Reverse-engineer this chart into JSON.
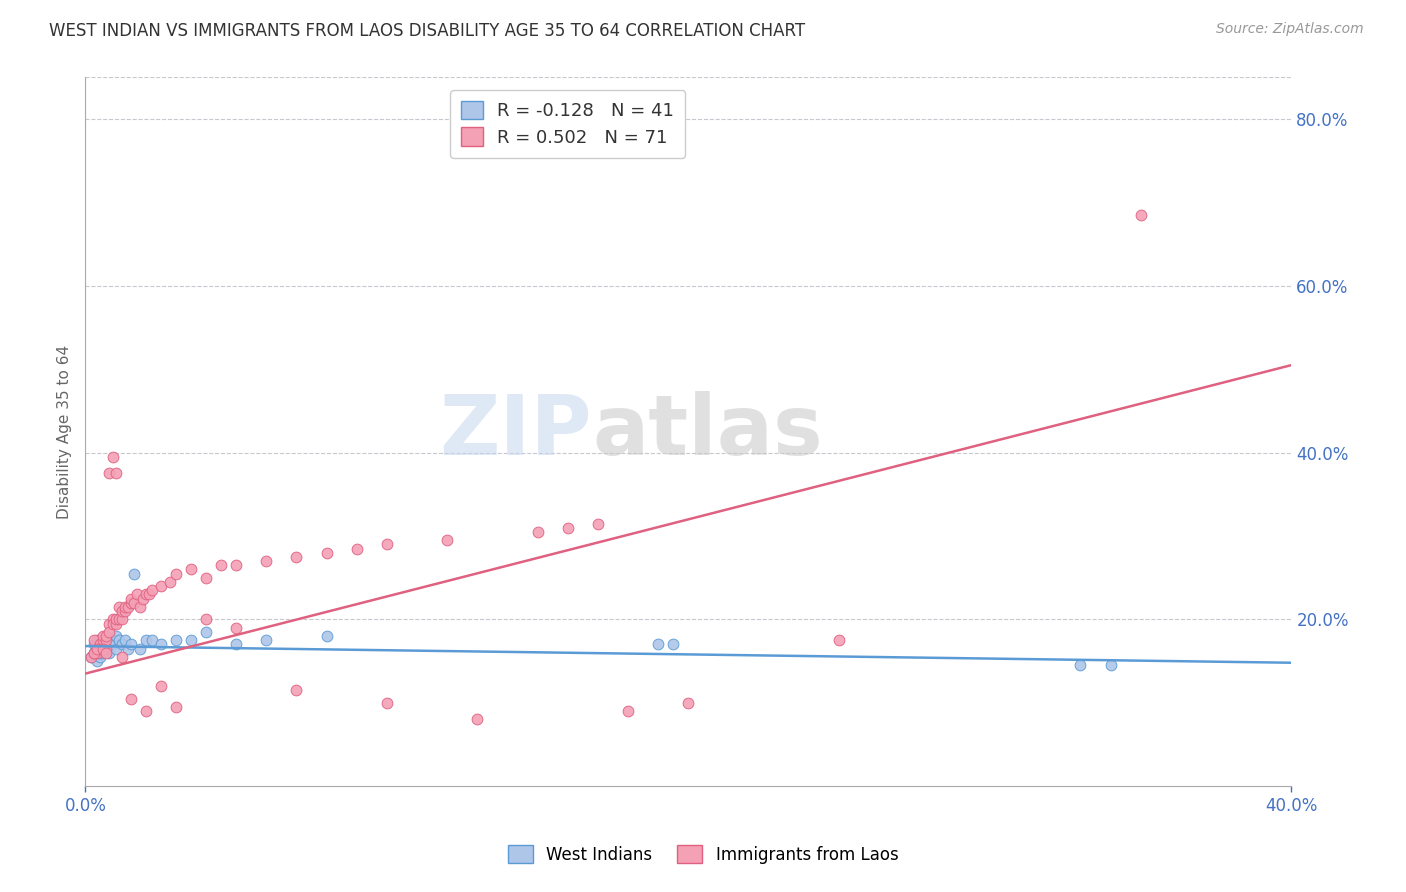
{
  "title": "WEST INDIAN VS IMMIGRANTS FROM LAOS DISABILITY AGE 35 TO 64 CORRELATION CHART",
  "source": "Source: ZipAtlas.com",
  "ylabel": "Disability Age 35 to 64",
  "xlim": [
    0.0,
    0.4
  ],
  "ylim": [
    0.0,
    0.85
  ],
  "xticks": [
    0.0,
    0.4
  ],
  "xtick_labels": [
    "0.0%",
    "40.0%"
  ],
  "ytick_positions": [
    0.2,
    0.4,
    0.6,
    0.8
  ],
  "ytick_labels": [
    "20.0%",
    "40.0%",
    "60.0%",
    "80.0%"
  ],
  "background_color": "#ffffff",
  "grid_color": "#c8c8d0",
  "axis_color": "#4472c4",
  "watermark_text": "ZIP",
  "watermark_text2": "atlas",
  "legend_series1_label": "R = -0.128   N = 41",
  "legend_series2_label": "R = 0.502   N = 71",
  "legend_series1_color": "#aec6e8",
  "legend_series2_color": "#f4a0b5",
  "west_indians_color": "#aec6e8",
  "west_indians_edge": "#5b9bd5",
  "laos_color": "#f4a0b5",
  "laos_edge": "#e06080",
  "line_west_color": "#5b9bd5",
  "line_laos_color": "#e06080",
  "west_x": [
    0.002,
    0.003,
    0.003,
    0.004,
    0.004,
    0.004,
    0.005,
    0.005,
    0.005,
    0.006,
    0.006,
    0.006,
    0.007,
    0.007,
    0.007,
    0.008,
    0.008,
    0.009,
    0.009,
    0.01,
    0.01,
    0.011,
    0.012,
    0.013,
    0.014,
    0.015,
    0.016,
    0.018,
    0.02,
    0.022,
    0.025,
    0.03,
    0.035,
    0.04,
    0.05,
    0.06,
    0.08,
    0.19,
    0.195,
    0.33,
    0.34
  ],
  "west_y": [
    0.155,
    0.16,
    0.17,
    0.15,
    0.165,
    0.175,
    0.155,
    0.165,
    0.16,
    0.16,
    0.17,
    0.175,
    0.165,
    0.17,
    0.178,
    0.16,
    0.178,
    0.17,
    0.175,
    0.165,
    0.18,
    0.175,
    0.17,
    0.175,
    0.165,
    0.17,
    0.255,
    0.165,
    0.175,
    0.175,
    0.17,
    0.175,
    0.175,
    0.185,
    0.17,
    0.175,
    0.18,
    0.17,
    0.17,
    0.145,
    0.145
  ],
  "laos_x": [
    0.002,
    0.003,
    0.003,
    0.004,
    0.004,
    0.005,
    0.005,
    0.006,
    0.006,
    0.007,
    0.007,
    0.007,
    0.008,
    0.008,
    0.009,
    0.009,
    0.01,
    0.01,
    0.011,
    0.011,
    0.012,
    0.012,
    0.013,
    0.013,
    0.014,
    0.015,
    0.015,
    0.016,
    0.017,
    0.018,
    0.019,
    0.02,
    0.021,
    0.022,
    0.025,
    0.028,
    0.03,
    0.035,
    0.04,
    0.045,
    0.05,
    0.06,
    0.07,
    0.08,
    0.09,
    0.1,
    0.12,
    0.15,
    0.16,
    0.17,
    0.003,
    0.004,
    0.006,
    0.007,
    0.008,
    0.009,
    0.01,
    0.012,
    0.015,
    0.02,
    0.025,
    0.03,
    0.04,
    0.05,
    0.07,
    0.1,
    0.13,
    0.18,
    0.2,
    0.25,
    0.35
  ],
  "laos_y": [
    0.155,
    0.16,
    0.175,
    0.165,
    0.16,
    0.17,
    0.165,
    0.175,
    0.18,
    0.165,
    0.175,
    0.18,
    0.195,
    0.185,
    0.2,
    0.195,
    0.195,
    0.2,
    0.2,
    0.215,
    0.2,
    0.21,
    0.21,
    0.215,
    0.215,
    0.22,
    0.225,
    0.22,
    0.23,
    0.215,
    0.225,
    0.23,
    0.23,
    0.235,
    0.24,
    0.245,
    0.255,
    0.26,
    0.25,
    0.265,
    0.265,
    0.27,
    0.275,
    0.28,
    0.285,
    0.29,
    0.295,
    0.305,
    0.31,
    0.315,
    0.16,
    0.165,
    0.165,
    0.16,
    0.375,
    0.395,
    0.375,
    0.155,
    0.105,
    0.09,
    0.12,
    0.095,
    0.2,
    0.19,
    0.115,
    0.1,
    0.08,
    0.09,
    0.1,
    0.175,
    0.685
  ],
  "line_west_x0": 0.0,
  "line_west_x1": 0.4,
  "line_west_y0": 0.168,
  "line_west_y1": 0.148,
  "line_laos_x0": 0.0,
  "line_laos_x1": 0.4,
  "line_laos_y0": 0.135,
  "line_laos_y1": 0.505
}
